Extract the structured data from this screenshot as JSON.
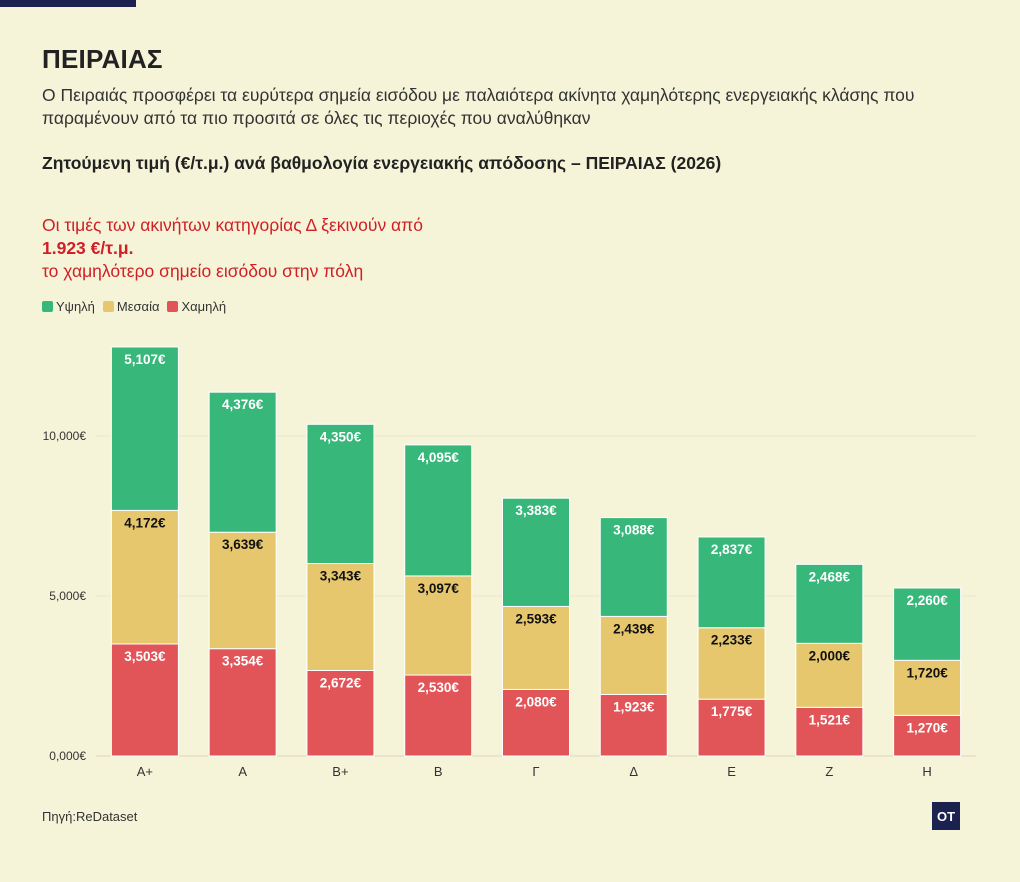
{
  "title": "ΠΕΙΡΑΙΑΣ",
  "subtitle": "Ο Πειραιάς προσφέρει τα ευρύτερα σημεία εισόδου με παλαιότερα ακίνητα χαμηλότερης ενεργειακής κλάσης που παραμένουν από τα πιο προσιτά σε όλες τις περιοχές που αναλύθηκαν",
  "chart_heading": "Ζητούμενη τιμή (€/τ.μ.) ανά βαθμολογία ενεργειακής απόδοσης – ΠΕΙΡΑΙΑΣ (2026)",
  "annotation": {
    "line1": "Οι τιμές των ακινήτων κατηγορίας Δ ξεκινούν από",
    "line2": "1.923 €/τ.μ.",
    "line3": "το χαμηλότερο σημείο εισόδου στην πόλη"
  },
  "legend": [
    {
      "label": "Υψηλή",
      "color": "#37b77a"
    },
    {
      "label": "Μεσαία",
      "color": "#e6c76d"
    },
    {
      "label": "Χαμηλή",
      "color": "#e15559"
    }
  ],
  "source": "Πηγή:ReDataset",
  "logo_text": "OT",
  "colors": {
    "background": "#f6f4d8",
    "high": "#37b77a",
    "medium": "#e6c76d",
    "low": "#e15559",
    "accent_red": "#d01f26",
    "navy": "#1c2250"
  },
  "chart_data": {
    "type": "bar",
    "stacked": true,
    "categories": [
      "A+",
      "A",
      "B+",
      "B",
      "Γ",
      "Δ",
      "Ε",
      "Ζ",
      "Η"
    ],
    "series": [
      {
        "name": "Χαμηλή",
        "color": "#e15559",
        "values": [
          3503,
          3354,
          2672,
          2530,
          2080,
          1923,
          1775,
          1521,
          1270
        ],
        "labels": [
          "3,503€",
          "3,354€",
          "2,672€",
          "2,530€",
          "2,080€",
          "1,923€",
          "1,775€",
          "1,521€",
          "1,270€"
        ],
        "label_color": "#ffffff"
      },
      {
        "name": "Μεσαία",
        "color": "#e6c76d",
        "values": [
          4172,
          3639,
          3343,
          3097,
          2593,
          2439,
          2233,
          2000,
          1720
        ],
        "labels": [
          "4,172€",
          "3,639€",
          "3,343€",
          "3,097€",
          "2,593€",
          "2,439€",
          "2,233€",
          "2,000€",
          "1,720€"
        ],
        "label_color": "#111111"
      },
      {
        "name": "Υψηλή",
        "color": "#37b77a",
        "values": [
          5107,
          4376,
          4350,
          4095,
          3383,
          3088,
          2837,
          2468,
          2260
        ],
        "labels": [
          "5,107€",
          "4,376€",
          "4,350€",
          "4,095€",
          "3,383€",
          "3,088€",
          "2,837€",
          "2,468€",
          "2,260€"
        ],
        "label_color": "#ffffff"
      }
    ],
    "y_ticks": [
      0,
      5000,
      10000
    ],
    "y_tick_labels": [
      "0,000€",
      "5,000€",
      "10,000€"
    ],
    "ylim": [
      0,
      13000
    ],
    "grid": true,
    "legend_position": "top-left"
  }
}
